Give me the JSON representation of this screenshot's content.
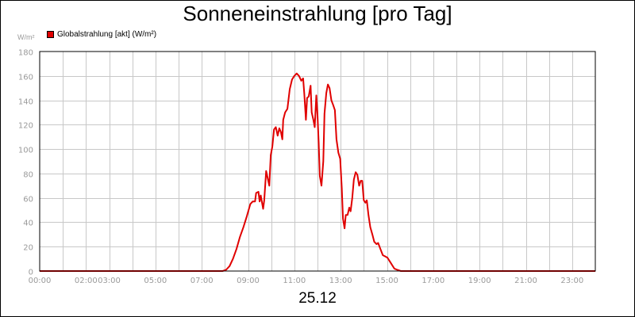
{
  "chart_data": {
    "type": "line",
    "title": "Sonneneinstrahlung [pro Tag]",
    "subtitle": "25.12",
    "ylabel": "W/m²",
    "xlabel": "",
    "xlim_hours": [
      0,
      24
    ],
    "ylim": [
      0,
      180
    ],
    "y_ticks": [
      0,
      20,
      40,
      60,
      80,
      100,
      120,
      140,
      160,
      180
    ],
    "x_ticks": [
      {
        "h": 0,
        "label": "00:00"
      },
      {
        "h": 2,
        "label": "02:00"
      },
      {
        "h": 3,
        "label": "03:00"
      },
      {
        "h": 5,
        "label": "05:00"
      },
      {
        "h": 7,
        "label": "07:00"
      },
      {
        "h": 9,
        "label": "09:00"
      },
      {
        "h": 11,
        "label": "11:00"
      },
      {
        "h": 13,
        "label": "13:00"
      },
      {
        "h": 15,
        "label": "15:00"
      },
      {
        "h": 17,
        "label": "17:00"
      },
      {
        "h": 19,
        "label": "19:00"
      },
      {
        "h": 21,
        "label": "21:00"
      },
      {
        "h": 23,
        "label": "23:00"
      }
    ],
    "grid": true,
    "legend_position": "top-left",
    "series": [
      {
        "name": "Globalstrahlung [akt] (W/m²)",
        "color": "#e00000",
        "points": [
          [
            0,
            0
          ],
          [
            7.9,
            0
          ],
          [
            8.05,
            1
          ],
          [
            8.2,
            4
          ],
          [
            8.35,
            10
          ],
          [
            8.5,
            18
          ],
          [
            8.65,
            28
          ],
          [
            8.8,
            36
          ],
          [
            8.95,
            45
          ],
          [
            9.1,
            55
          ],
          [
            9.2,
            57
          ],
          [
            9.3,
            57
          ],
          [
            9.35,
            64
          ],
          [
            9.45,
            65
          ],
          [
            9.5,
            57
          ],
          [
            9.55,
            62
          ],
          [
            9.65,
            51
          ],
          [
            9.7,
            58
          ],
          [
            9.78,
            82
          ],
          [
            9.85,
            76
          ],
          [
            9.92,
            70
          ],
          [
            9.98,
            95
          ],
          [
            10.05,
            102
          ],
          [
            10.12,
            116
          ],
          [
            10.2,
            118
          ],
          [
            10.28,
            111
          ],
          [
            10.35,
            117
          ],
          [
            10.42,
            114
          ],
          [
            10.48,
            108
          ],
          [
            10.52,
            124
          ],
          [
            10.6,
            130
          ],
          [
            10.7,
            133
          ],
          [
            10.8,
            149
          ],
          [
            10.9,
            157
          ],
          [
            11.0,
            160
          ],
          [
            11.1,
            162
          ],
          [
            11.2,
            160
          ],
          [
            11.3,
            156
          ],
          [
            11.38,
            158
          ],
          [
            11.43,
            145
          ],
          [
            11.5,
            124
          ],
          [
            11.55,
            142
          ],
          [
            11.62,
            143
          ],
          [
            11.7,
            152
          ],
          [
            11.75,
            130
          ],
          [
            11.82,
            124
          ],
          [
            11.88,
            118
          ],
          [
            11.95,
            144
          ],
          [
            12.0,
            128
          ],
          [
            12.05,
            105
          ],
          [
            12.1,
            78
          ],
          [
            12.17,
            70
          ],
          [
            12.25,
            90
          ],
          [
            12.3,
            129
          ],
          [
            12.38,
            146
          ],
          [
            12.45,
            153
          ],
          [
            12.52,
            150
          ],
          [
            12.6,
            140
          ],
          [
            12.68,
            136
          ],
          [
            12.75,
            132
          ],
          [
            12.82,
            108
          ],
          [
            12.9,
            97
          ],
          [
            12.98,
            92
          ],
          [
            13.05,
            68
          ],
          [
            13.1,
            43
          ],
          [
            13.17,
            35
          ],
          [
            13.22,
            46
          ],
          [
            13.3,
            46
          ],
          [
            13.37,
            52
          ],
          [
            13.43,
            49
          ],
          [
            13.5,
            60
          ],
          [
            13.57,
            75
          ],
          [
            13.65,
            81
          ],
          [
            13.72,
            79
          ],
          [
            13.8,
            70
          ],
          [
            13.87,
            74
          ],
          [
            13.93,
            74
          ],
          [
            14.0,
            58
          ],
          [
            14.07,
            56
          ],
          [
            14.13,
            58
          ],
          [
            14.2,
            46
          ],
          [
            14.28,
            36
          ],
          [
            14.37,
            30
          ],
          [
            14.45,
            24
          ],
          [
            14.55,
            22
          ],
          [
            14.62,
            23
          ],
          [
            14.72,
            18
          ],
          [
            14.82,
            13
          ],
          [
            14.92,
            12
          ],
          [
            15.02,
            11
          ],
          [
            15.12,
            8
          ],
          [
            15.22,
            5
          ],
          [
            15.32,
            2
          ],
          [
            15.45,
            1
          ],
          [
            15.6,
            0
          ],
          [
            24,
            0
          ]
        ]
      }
    ]
  }
}
